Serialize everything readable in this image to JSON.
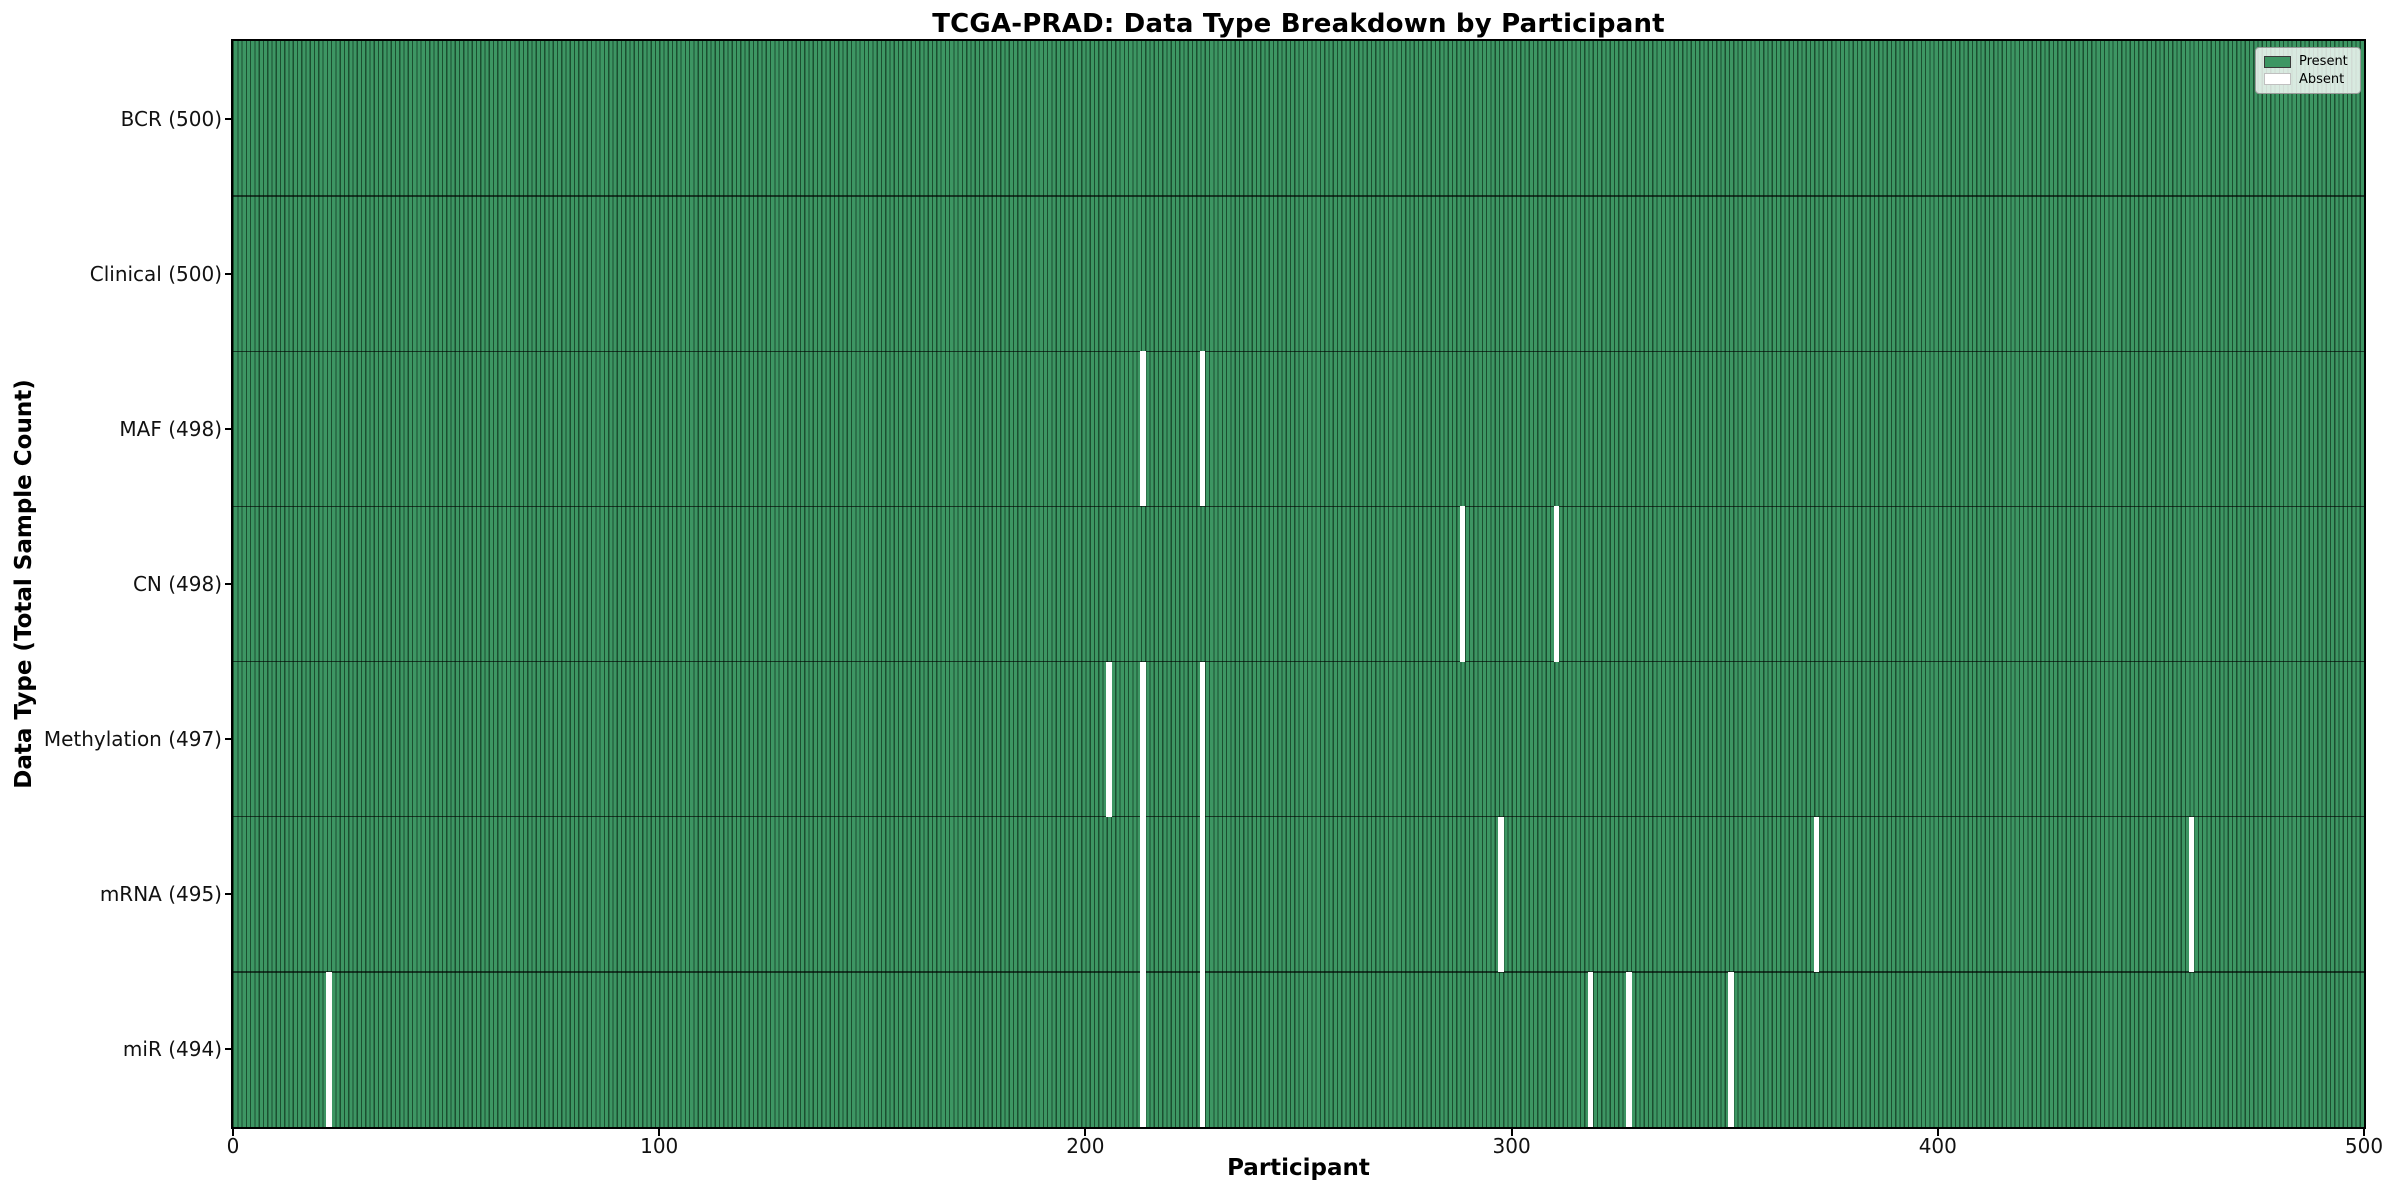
{
  "chart_data": {
    "type": "heatmap",
    "title": "TCGA-PRAD: Data Type Breakdown by Participant",
    "xlabel": "Participant",
    "ylabel": "Data Type (Total Sample Count)",
    "x_range": [
      0,
      500
    ],
    "x_ticks": [
      0,
      100,
      200,
      300,
      400,
      500
    ],
    "n_participants": 500,
    "grid": false,
    "rows": [
      {
        "label": "BCR (500)",
        "data_type": "BCR",
        "total": 500,
        "absent_participants": []
      },
      {
        "label": "Clinical (500)",
        "data_type": "Clinical",
        "total": 500,
        "absent_participants": []
      },
      {
        "label": "MAF (498)",
        "data_type": "MAF",
        "total": 498,
        "absent_participants": [
          213,
          227
        ]
      },
      {
        "label": "CN (498)",
        "data_type": "CN",
        "total": 498,
        "absent_participants": [
          288,
          310
        ]
      },
      {
        "label": "Methylation (497)",
        "data_type": "Methylation",
        "total": 497,
        "absent_participants": [
          205,
          213,
          227
        ]
      },
      {
        "label": "mRNA (495)",
        "data_type": "mRNA",
        "total": 495,
        "absent_participants": [
          213,
          227,
          297,
          371,
          459
        ]
      },
      {
        "label": "miR (494)",
        "data_type": "miR",
        "total": 494,
        "absent_participants": [
          22,
          213,
          227,
          318,
          327,
          351
        ]
      }
    ],
    "legend": {
      "position": "upper right",
      "entries": [
        {
          "label": "Present",
          "color": "#3d9663"
        },
        {
          "label": "Absent",
          "color": "#ffffff"
        }
      ]
    },
    "colors": {
      "present": "#3d9663",
      "cell_edge": "#1b4f30",
      "absent": "#ffffff"
    }
  }
}
